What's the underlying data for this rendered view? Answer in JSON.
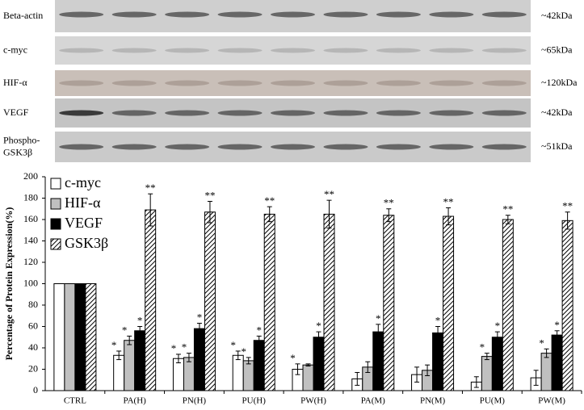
{
  "blots": [
    {
      "label_lines": [
        "Beta-actin"
      ],
      "size": "~42kDa"
    },
    {
      "label_lines": [
        "c-myc"
      ],
      "size": "~65kDa"
    },
    {
      "label_lines": [
        "HIF-α"
      ],
      "size": "~120kDa"
    },
    {
      "label_lines": [
        "VEGF"
      ],
      "size": "~42kDa"
    },
    {
      "label_lines": [
        "Phospho-",
        "GSK3β"
      ],
      "size": "~51kDa"
    }
  ],
  "chart_data": {
    "type": "bar",
    "y_label": "Percentage of Protein Expression(%)",
    "categories": [
      "CTRL",
      "PA(H)",
      "PN(H)",
      "PU(H)",
      "PW(H)",
      "PA(M)",
      "PN(M)",
      "PU(M)",
      "PW(M)"
    ],
    "series": [
      {
        "name": "c-myc",
        "color": "#ffffff",
        "hatch": false,
        "values": [
          100,
          33,
          30,
          33,
          20,
          11,
          15,
          8,
          12
        ],
        "errors": [
          0,
          4,
          4,
          4,
          5,
          6,
          7,
          5,
          7
        ],
        "significance": [
          null,
          "*",
          "*",
          "*",
          "*",
          null,
          null,
          null,
          null
        ]
      },
      {
        "name": "HIF-α",
        "color": "#c0c0c0",
        "hatch": false,
        "values": [
          100,
          47,
          31,
          28,
          24,
          22,
          19,
          32,
          35
        ],
        "errors": [
          0,
          4,
          4,
          3,
          1,
          5,
          5,
          3,
          4
        ],
        "significance": [
          null,
          "*",
          "*",
          "*",
          null,
          null,
          null,
          "*",
          "*"
        ]
      },
      {
        "name": "VEGF",
        "color": "#000000",
        "hatch": false,
        "values": [
          100,
          56,
          58,
          47,
          50,
          55,
          54,
          50,
          52
        ],
        "errors": [
          0,
          4,
          5,
          4,
          5,
          7,
          6,
          5,
          4
        ],
        "significance": [
          null,
          "*",
          "*",
          "*",
          "*",
          "*",
          "*",
          "*",
          "*"
        ]
      },
      {
        "name": "GSK3β",
        "color": "#ffffff",
        "hatch": true,
        "values": [
          100,
          169,
          167,
          165,
          165,
          164,
          163,
          160,
          159
        ],
        "errors": [
          0,
          15,
          10,
          7,
          13,
          6,
          8,
          4,
          8
        ],
        "significance": [
          null,
          "**",
          "**",
          "**",
          "**",
          "**",
          "**",
          "**",
          "**"
        ]
      }
    ],
    "ylim": [
      0,
      200
    ],
    "yticks": [
      0,
      20,
      40,
      60,
      80,
      100,
      120,
      140,
      160,
      180,
      200
    ],
    "grid": false,
    "legend": "upper-left"
  }
}
